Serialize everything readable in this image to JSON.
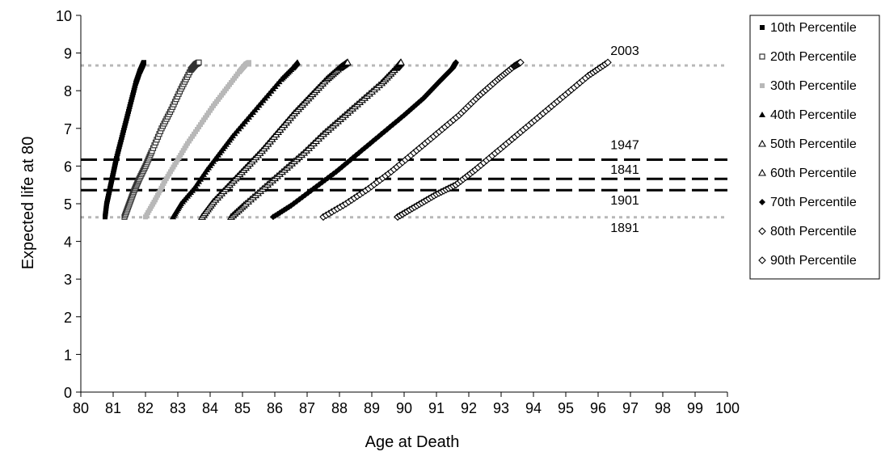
{
  "chart_data": {
    "type": "scatter",
    "title": "",
    "xlabel": "Age at Death",
    "ylabel": "Expected life at 80",
    "xlim": [
      80,
      100
    ],
    "ylim": [
      0,
      10
    ],
    "x_ticks": [
      "80",
      "81",
      "82",
      "83",
      "84",
      "85",
      "86",
      "87",
      "88",
      "89",
      "90",
      "91",
      "92",
      "93",
      "94",
      "95",
      "96",
      "97",
      "98",
      "99",
      "100"
    ],
    "y_ticks": [
      "0",
      "1",
      "2",
      "3",
      "4",
      "5",
      "6",
      "7",
      "8",
      "9",
      "10"
    ],
    "grid": false,
    "legend_position": "right",
    "series": [
      {
        "name": "10th Percentile",
        "marker": "square-filled",
        "color": "#000000",
        "x": [
          80.75,
          80.8,
          80.9,
          81.0,
          81.1,
          81.25,
          81.4,
          81.55,
          81.7,
          81.82,
          81.9,
          81.95
        ],
        "y": [
          4.65,
          5.0,
          5.4,
          5.8,
          6.2,
          6.7,
          7.2,
          7.7,
          8.2,
          8.5,
          8.65,
          8.75
        ]
      },
      {
        "name": "20th Percentile",
        "marker": "square-open",
        "color": "#333333",
        "x": [
          81.35,
          81.5,
          81.65,
          81.8,
          82.0,
          82.2,
          82.5,
          82.8,
          83.1,
          83.4,
          83.55,
          83.65
        ],
        "y": [
          4.65,
          5.0,
          5.35,
          5.65,
          6.0,
          6.4,
          7.0,
          7.5,
          8.05,
          8.55,
          8.7,
          8.75
        ]
      },
      {
        "name": "30th Percentile",
        "marker": "square-filled",
        "color": "#b8b8b8",
        "x": [
          82.0,
          82.3,
          82.6,
          82.95,
          83.3,
          83.7,
          84.1,
          84.5,
          84.9,
          85.1,
          85.2
        ],
        "y": [
          4.65,
          5.1,
          5.6,
          6.1,
          6.6,
          7.1,
          7.6,
          8.05,
          8.5,
          8.7,
          8.75
        ]
      },
      {
        "name": "40th Percentile",
        "marker": "triangle-filled",
        "color": "#000000",
        "x": [
          82.85,
          83.1,
          83.5,
          83.9,
          84.3,
          84.7,
          85.2,
          85.7,
          86.2,
          86.55,
          86.7
        ],
        "y": [
          4.65,
          5.0,
          5.4,
          5.9,
          6.35,
          6.8,
          7.3,
          7.8,
          8.3,
          8.6,
          8.75
        ]
      },
      {
        "name": "50th Percentile",
        "marker": "triangle-open",
        "color": "#000000",
        "x": [
          83.75,
          84.1,
          84.6,
          85.1,
          85.6,
          86.1,
          86.6,
          87.1,
          87.6,
          88.0,
          88.25
        ],
        "y": [
          4.65,
          5.05,
          5.5,
          5.95,
          6.4,
          6.9,
          7.4,
          7.85,
          8.3,
          8.6,
          8.75
        ]
      },
      {
        "name": "60th Percentile",
        "marker": "triangle-open",
        "color": "#000000",
        "x": [
          84.65,
          85.1,
          85.7,
          86.3,
          86.9,
          87.5,
          88.1,
          88.7,
          89.3,
          89.75,
          89.9
        ],
        "y": [
          4.65,
          5.0,
          5.45,
          5.9,
          6.35,
          6.85,
          7.3,
          7.75,
          8.2,
          8.6,
          8.75
        ]
      },
      {
        "name": "70th Percentile",
        "marker": "diamond-filled",
        "color": "#000000",
        "x": [
          85.95,
          86.5,
          87.2,
          87.9,
          88.6,
          89.3,
          90.0,
          90.6,
          91.1,
          91.5,
          91.6
        ],
        "y": [
          4.65,
          4.95,
          5.4,
          5.85,
          6.35,
          6.85,
          7.35,
          7.8,
          8.25,
          8.6,
          8.75
        ]
      },
      {
        "name": "80th Percentile",
        "marker": "diamond-open",
        "color": "#000000",
        "x": [
          87.5,
          88.2,
          88.9,
          89.6,
          90.3,
          91.0,
          91.7,
          92.3,
          92.9,
          93.4,
          93.6
        ],
        "y": [
          4.65,
          5.0,
          5.4,
          5.85,
          6.35,
          6.85,
          7.35,
          7.85,
          8.3,
          8.65,
          8.75
        ]
      },
      {
        "name": "90th Percentile",
        "marker": "diamond-open",
        "color": "#000000",
        "x": [
          89.8,
          90.4,
          91.0,
          91.6,
          92.2,
          92.9,
          93.6,
          94.3,
          95.0,
          95.7,
          96.3
        ],
        "y": [
          4.65,
          4.95,
          5.25,
          5.5,
          5.9,
          6.4,
          6.9,
          7.4,
          7.9,
          8.4,
          8.75
        ]
      }
    ],
    "reference_lines": [
      {
        "label": "2003",
        "y": 8.67,
        "style": "dotted",
        "color": "#b8b8b8"
      },
      {
        "label": "1947",
        "y": 6.17,
        "style": "dashed",
        "color": "#000000"
      },
      {
        "label": "1841",
        "y": 5.66,
        "style": "dashed",
        "color": "#000000"
      },
      {
        "label": "1901",
        "y": 5.36,
        "style": "dashed",
        "color": "#000000"
      },
      {
        "label": "1891",
        "y": 4.64,
        "style": "dotted",
        "color": "#b8b8b8"
      }
    ]
  }
}
